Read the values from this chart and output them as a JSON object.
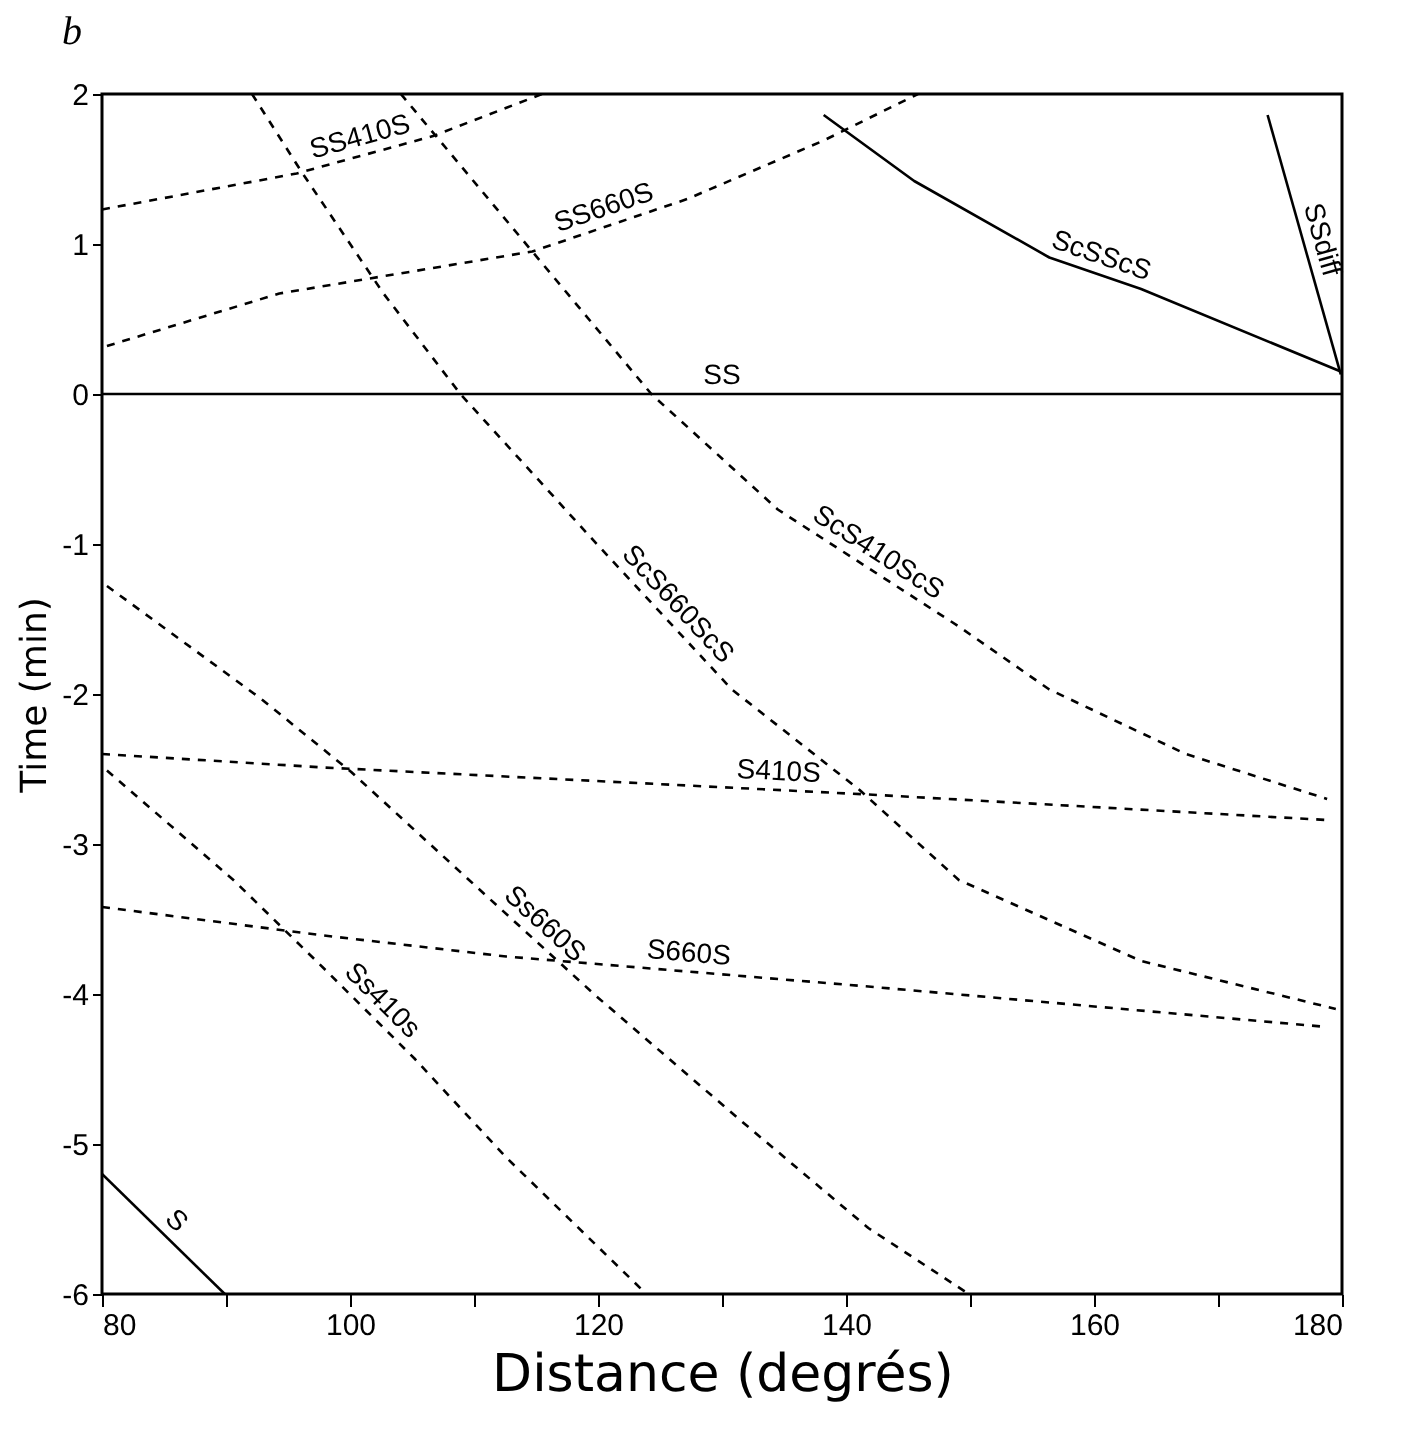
{
  "chart_data": {
    "type": "line",
    "title": "b",
    "xlabel": "Distance (degrés)",
    "ylabel": "Time (min)",
    "xlim": [
      80,
      180
    ],
    "ylim": [
      -6,
      2
    ],
    "xticks": [
      80,
      {
        "value": 90,
        "label": null
      },
      100,
      {
        "value": 110,
        "label": null
      },
      120,
      {
        "value": 130,
        "label": null
      },
      140,
      {
        "value": 150,
        "label": null
      },
      160,
      {
        "value": 170,
        "label": null
      },
      180
    ],
    "yticks": [
      -6,
      -5,
      -4,
      -3,
      -2,
      -1,
      0,
      1,
      2
    ],
    "grid": false,
    "legend": false,
    "marker": "none",
    "series": [
      {
        "name": "SS",
        "color": "#000000",
        "line_style": "solid",
        "x": [
          80,
          180
        ],
        "values": [
          0,
          0
        ]
      },
      {
        "name": "ScSScS",
        "color": "#000000",
        "line_style": "solid",
        "x": [
          138.2,
          145.5,
          156.4,
          163.8,
          179.9
        ],
        "values": [
          1.86,
          1.42,
          0.91,
          0.7,
          0.15
        ]
      },
      {
        "name": "SSdiff",
        "color": "#000000",
        "line_style": "solid",
        "x": [
          174,
          179.9
        ],
        "values": [
          1.86,
          0.13
        ]
      },
      {
        "name": "SS410S",
        "color": "#000000",
        "line_style": "dashed",
        "x": [
          80,
          95.7,
          106.7,
          115.5
        ],
        "values": [
          1.23,
          1.47,
          1.72,
          2.0
        ]
      },
      {
        "name": "SS660S",
        "color": "#000000",
        "line_style": "dashed",
        "x": [
          80.4,
          94.3,
          114.7,
          127.2,
          138.2,
          145.8
        ],
        "values": [
          0.32,
          0.67,
          0.95,
          1.3,
          1.69,
          2.0
        ]
      },
      {
        "name": "ScS660ScS",
        "color": "#000000",
        "line_style": "dashed",
        "x": [
          92.1,
          96.1,
          102.7,
          108.9,
          119.9,
          130.8,
          141.1,
          149.1,
          163.8,
          179.5
        ],
        "values": [
          2.0,
          1.48,
          0.67,
          0,
          -1.0,
          -1.97,
          -2.64,
          -3.24,
          -3.78,
          -4.1
        ]
      },
      {
        "name": "ScS410ScS",
        "color": "#000000",
        "line_style": "dashed",
        "x": [
          104.1,
          114.7,
          124.3,
          134.5,
          149.1,
          156.4,
          167.4,
          178.8
        ],
        "values": [
          2.0,
          0.95,
          0,
          -0.77,
          -1.55,
          -1.97,
          -2.4,
          -2.7
        ]
      },
      {
        "name": "S410S",
        "color": "#000000",
        "line_style": "dashed",
        "x": [
          80,
          97.9,
          127.2,
          141.8,
          178.8
        ],
        "values": [
          -2.4,
          -2.49,
          -2.61,
          -2.67,
          -2.84
        ]
      },
      {
        "name": "S660S",
        "color": "#000000",
        "line_style": "dashed",
        "x": [
          80,
          97.9,
          112.6,
          141.8,
          178.8
        ],
        "values": [
          -3.42,
          -3.61,
          -3.75,
          -3.95,
          -4.22
        ]
      },
      {
        "name": "Ss660S",
        "color": "#000000",
        "line_style": "dashed",
        "x": [
          80.4,
          92.8,
          100.1,
          109.6,
          119.8,
          131.6,
          141.8,
          149.9
        ],
        "values": [
          -1.28,
          -2.03,
          -2.52,
          -3.24,
          -4.01,
          -4.85,
          -5.56,
          -6.0
        ]
      },
      {
        "name": "Ss410s",
        "color": "#000000",
        "line_style": "dashed",
        "x": [
          80.4,
          90.6,
          97.9,
          105.2,
          112.6,
          123.9
        ],
        "values": [
          -2.51,
          -3.24,
          -3.83,
          -4.43,
          -5.09,
          -6.0
        ]
      },
      {
        "name": "S",
        "color": "#000000",
        "line_style": "solid",
        "x": [
          80,
          89.9
        ],
        "values": [
          -5.2,
          -6.0
        ]
      }
    ]
  }
}
